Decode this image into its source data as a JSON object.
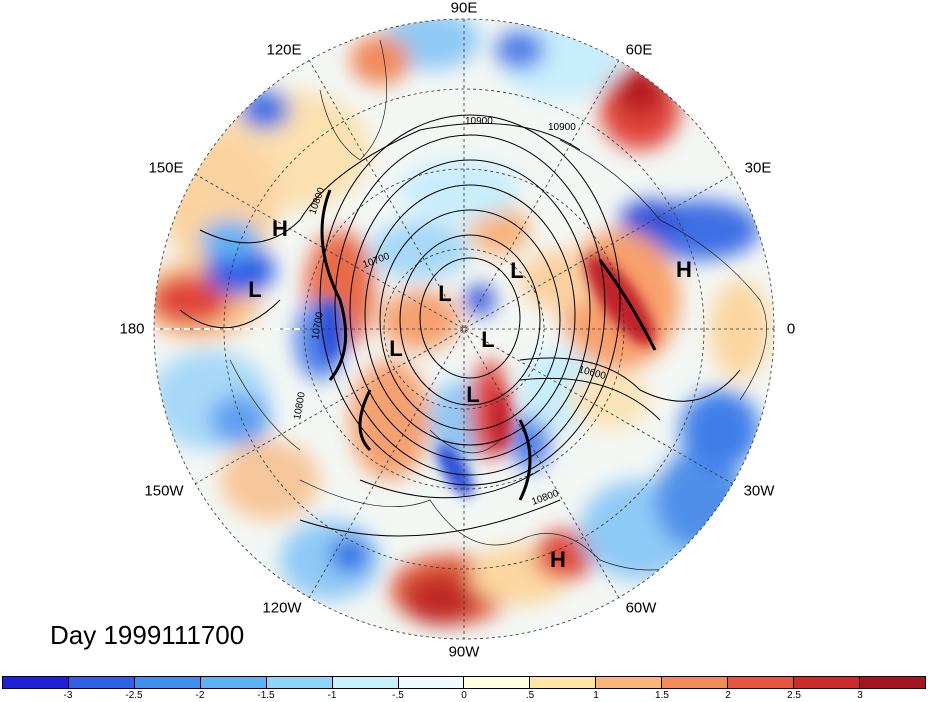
{
  "map": {
    "longitude_labels": [
      "90E",
      "60E",
      "30E",
      "0",
      "30W",
      "60W",
      "90W",
      "120W",
      "150W",
      "180",
      "150E",
      "120E"
    ],
    "centers": [
      {
        "letter": "H"
      },
      {
        "letter": "H"
      },
      {
        "letter": "H"
      },
      {
        "letter": "L"
      },
      {
        "letter": "L"
      },
      {
        "letter": "L"
      },
      {
        "letter": "L"
      },
      {
        "letter": "L"
      },
      {
        "letter": "L"
      }
    ],
    "contour_labels": [
      "10900",
      "10900",
      "10800",
      "10700",
      "10700",
      "10600",
      "10800",
      "10800"
    ]
  },
  "footer": {
    "day_label": "Day 1999111700"
  },
  "colorbar": {
    "colors": [
      "#1f1fd6",
      "#2f5fe6",
      "#3f8fef",
      "#5fb0f5",
      "#8fd4fa",
      "#c8f0fd",
      "#eefbfe",
      "#fffde0",
      "#fde4a8",
      "#f9b57a",
      "#f38a5c",
      "#e75540",
      "#cf2a2a",
      "#a6141f"
    ],
    "tick_labels": [
      "-3",
      "-2.5",
      "-2",
      "-1.5",
      "-1",
      "-.5",
      "0",
      ".5",
      "1",
      "1.5",
      "2",
      "2.5",
      "3"
    ]
  }
}
